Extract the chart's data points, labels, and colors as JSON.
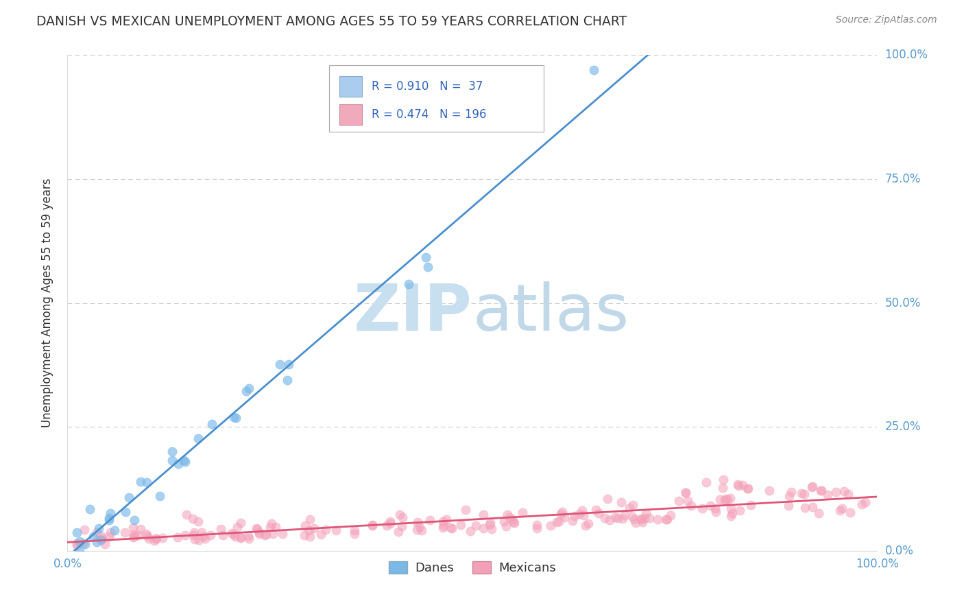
{
  "title": "DANISH VS MEXICAN UNEMPLOYMENT AMONG AGES 55 TO 59 YEARS CORRELATION CHART",
  "source": "Source: ZipAtlas.com",
  "ylabel_ticks": [
    "0.0%",
    "25.0%",
    "50.0%",
    "75.0%",
    "100.0%"
  ],
  "ytick_vals": [
    0.0,
    0.25,
    0.5,
    0.75,
    1.0
  ],
  "xlim": [
    0,
    1.0
  ],
  "ylim": [
    0,
    1.0
  ],
  "legend_label_danes": "Danes",
  "legend_label_mexicans": "Mexicans",
  "blue_scatter_color": "#7ab8e8",
  "pink_scatter_color": "#f4a0b8",
  "blue_line_color": "#4a8fcc",
  "pink_line_color": "#dd5577",
  "watermark_zip": "ZIP",
  "watermark_atlas": "atlas",
  "watermark_color_zip": "#c8dff0",
  "watermark_color_atlas": "#c0d8e8",
  "background_color": "#ffffff",
  "grid_color": "#cccccc",
  "title_color": "#333333",
  "source_color": "#888888",
  "axis_label_color": "#5599cc",
  "ylabel_text": "Unemployment Among Ages 55 to 59 years",
  "R_danes": 0.91,
  "N_danes": 37,
  "R_mexicans": 0.474,
  "N_mexicans": 196,
  "blue_seed": 42,
  "pink_seed": 99,
  "legend_R1": "R = 0.910",
  "legend_N1": "N =  37",
  "legend_R2": "R = 0.474",
  "legend_N2": "N = 196"
}
